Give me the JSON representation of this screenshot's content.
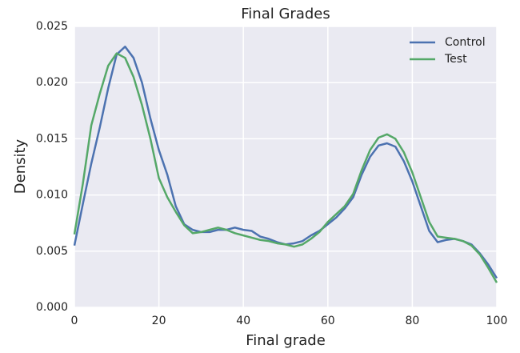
{
  "chart_data": {
    "type": "line",
    "title": "Final Grades",
    "xlabel": "Final grade",
    "ylabel": "Density",
    "x": [
      0,
      2,
      4,
      6,
      8,
      10,
      12,
      14,
      16,
      18,
      20,
      22,
      24,
      26,
      28,
      30,
      32,
      34,
      36,
      38,
      40,
      42,
      44,
      46,
      48,
      50,
      52,
      54,
      56,
      58,
      60,
      62,
      64,
      66,
      68,
      70,
      72,
      74,
      76,
      78,
      80,
      82,
      84,
      86,
      88,
      90,
      92,
      94,
      96,
      98,
      100
    ],
    "series": [
      {
        "name": "Control",
        "color": "#4c72b0",
        "values": [
          0.0055,
          0.0092,
          0.0128,
          0.016,
          0.0195,
          0.0225,
          0.0232,
          0.0222,
          0.02,
          0.0168,
          0.014,
          0.0118,
          0.009,
          0.0074,
          0.0069,
          0.0067,
          0.0067,
          0.0069,
          0.0069,
          0.0071,
          0.0069,
          0.0068,
          0.0063,
          0.0061,
          0.0058,
          0.0056,
          0.0057,
          0.0059,
          0.0064,
          0.0068,
          0.0074,
          0.008,
          0.0088,
          0.0098,
          0.0118,
          0.0134,
          0.0144,
          0.0146,
          0.0143,
          0.013,
          0.0112,
          0.009,
          0.0068,
          0.0058,
          0.006,
          0.0061,
          0.0059,
          0.0056,
          0.0048,
          0.0038,
          0.0026
        ]
      },
      {
        "name": "Test",
        "color": "#55a868",
        "values": [
          0.0065,
          0.011,
          0.0162,
          0.019,
          0.0215,
          0.0226,
          0.0222,
          0.0205,
          0.018,
          0.015,
          0.0115,
          0.0098,
          0.0085,
          0.0073,
          0.0066,
          0.0067,
          0.0069,
          0.0071,
          0.0069,
          0.0066,
          0.0064,
          0.0062,
          0.006,
          0.0059,
          0.0057,
          0.0056,
          0.0054,
          0.0056,
          0.0061,
          0.0067,
          0.0076,
          0.0083,
          0.009,
          0.0101,
          0.0122,
          0.014,
          0.0151,
          0.0154,
          0.015,
          0.0138,
          0.012,
          0.0098,
          0.0076,
          0.0063,
          0.0062,
          0.0061,
          0.0059,
          0.0055,
          0.0047,
          0.0035,
          0.0022
        ]
      }
    ],
    "xlim": [
      0,
      100
    ],
    "xticks": [
      0,
      20,
      40,
      60,
      80,
      100
    ],
    "ylim": [
      0,
      0.025
    ],
    "yticks": [
      {
        "value": 0,
        "label": "0.000"
      },
      {
        "value": 0.005,
        "label": "0.005"
      },
      {
        "value": 0.01,
        "label": "0.010"
      },
      {
        "value": 0.015,
        "label": "0.015"
      },
      {
        "value": 0.02,
        "label": "0.020"
      },
      {
        "value": 0.025,
        "label": "0.025"
      }
    ],
    "grid": true,
    "legend": "upper right"
  }
}
